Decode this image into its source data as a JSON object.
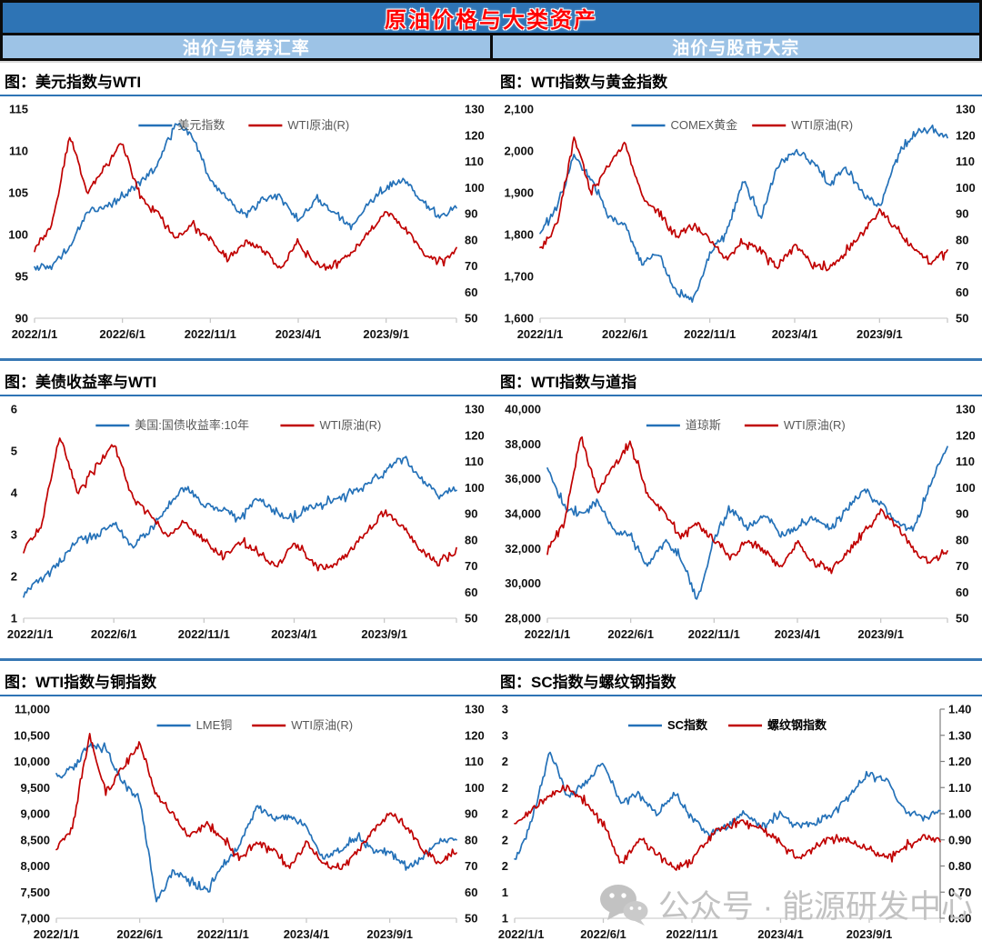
{
  "header": {
    "title": "原油价格与大类资产",
    "left_section": "油价与债券汇率",
    "right_section": "油价与股市大宗",
    "bar_color": "#2E74B5",
    "subheader_color": "#9DC3E6",
    "title_color": "#FF0000"
  },
  "watermark": {
    "text": "公众号 · 能源研发中心"
  },
  "colors": {
    "blue_series": "#2471B8",
    "red_series": "#C00000",
    "separator": "#3878B4"
  },
  "chart_data": [
    {
      "type": "line",
      "title": "图：美元指数与WTI",
      "x_tick_labels": [
        "2022/1/1",
        "2022/6/1",
        "2022/11/1",
        "2023/4/1",
        "2023/9/1"
      ],
      "x_tick_months": [
        0,
        5,
        10,
        15,
        20
      ],
      "x_total_months": 24,
      "left_axis": {
        "min": 90,
        "max": 115,
        "labels": [
          "115",
          "110",
          "105",
          "100",
          "95",
          "90"
        ]
      },
      "right_axis": {
        "min": 50,
        "max": 130,
        "labels": [
          "130",
          "120",
          "110",
          "100",
          "90",
          "80",
          "70",
          "60",
          "50"
        ]
      },
      "legend_bold": false,
      "right_axis_line": false,
      "series": [
        {
          "name": "美元指数",
          "color": "#2471B8",
          "axis": "left",
          "monthly_values": [
            96,
            96.4,
            98.4,
            102.8,
            103.3,
            104.5,
            106.2,
            108.3,
            113.3,
            111.8,
            106.6,
            104.1,
            102.2,
            104.3,
            104.5,
            101.7,
            104.1,
            102.7,
            100.9,
            103.6,
            105.7,
            106.6,
            104.2,
            101.9,
            103.4
          ]
        },
        {
          "name": "WTI原油(R)",
          "color": "#C00000",
          "axis": "right",
          "monthly_values": [
            76,
            86,
            120,
            98,
            108,
            117,
            97,
            90,
            81,
            86,
            80,
            73,
            79,
            76,
            69,
            79,
            71,
            69,
            75,
            83,
            91,
            85,
            76,
            71,
            76
          ]
        }
      ]
    },
    {
      "type": "line",
      "title": "图：WTI指数与黄金指数",
      "x_tick_labels": [
        "2022/1/1",
        "2022/6/1",
        "2022/11/1",
        "2023/4/1",
        "2023/9/1"
      ],
      "x_tick_months": [
        0,
        5,
        10,
        15,
        20
      ],
      "x_total_months": 24,
      "left_axis": {
        "min": 1600,
        "max": 2100,
        "labels": [
          "2,100",
          "2,000",
          "1,900",
          "1,800",
          "1,700",
          "1,600"
        ]
      },
      "right_axis": {
        "min": 50,
        "max": 130,
        "labels": [
          "130",
          "120",
          "110",
          "100",
          "90",
          "80",
          "70",
          "60",
          "50"
        ]
      },
      "legend_bold": false,
      "right_axis_line": false,
      "series": [
        {
          "name": "COMEX黄金",
          "color": "#2471B8",
          "axis": "left",
          "monthly_values": [
            1805,
            1865,
            1985,
            1935,
            1845,
            1820,
            1730,
            1755,
            1665,
            1640,
            1755,
            1810,
            1928,
            1840,
            1965,
            2000,
            1982,
            1920,
            1958,
            1898,
            1866,
            1985,
            2040,
            2060,
            2032
          ]
        },
        {
          "name": "WTI原油(R)",
          "color": "#C00000",
          "axis": "right",
          "monthly_values": [
            76,
            86,
            120,
            98,
            108,
            117,
            97,
            90,
            81,
            86,
            80,
            73,
            79,
            76,
            69,
            79,
            71,
            69,
            75,
            83,
            91,
            85,
            76,
            71,
            76
          ]
        }
      ]
    },
    {
      "type": "line",
      "title": "图：美债收益率与WTI",
      "x_tick_labels": [
        "2022/1/1",
        "2022/6/1",
        "2022/11/1",
        "2023/4/1",
        "2023/9/1"
      ],
      "x_tick_months": [
        0,
        5,
        10,
        15,
        20
      ],
      "x_total_months": 24,
      "left_axis": {
        "min": 1,
        "max": 6,
        "labels": [
          "6",
          "5",
          "4",
          "3",
          "2",
          "1"
        ]
      },
      "right_axis": {
        "min": 50,
        "max": 130,
        "labels": [
          "130",
          "120",
          "110",
          "100",
          "90",
          "80",
          "70",
          "60",
          "50"
        ]
      },
      "legend_bold": false,
      "right_axis_line": false,
      "series": [
        {
          "name": "美国:国债收益率:10年",
          "color": "#2471B8",
          "axis": "left",
          "monthly_values": [
            1.62,
            1.95,
            2.32,
            2.88,
            2.95,
            3.3,
            2.7,
            3.1,
            3.7,
            4.15,
            3.7,
            3.6,
            3.4,
            3.9,
            3.5,
            3.42,
            3.65,
            3.78,
            3.95,
            4.2,
            4.5,
            4.85,
            4.35,
            3.92,
            4.12
          ]
        },
        {
          "name": "WTI原油(R)",
          "color": "#C00000",
          "axis": "right",
          "monthly_values": [
            76,
            86,
            120,
            98,
            108,
            117,
            97,
            90,
            81,
            86,
            80,
            73,
            79,
            76,
            69,
            79,
            71,
            69,
            75,
            83,
            91,
            85,
            76,
            71,
            76
          ]
        }
      ]
    },
    {
      "type": "line",
      "title": "图：WTI指数与道指",
      "x_tick_labels": [
        "2022/1/1",
        "2022/6/1",
        "2022/11/1",
        "2023/4/1",
        "2023/9/1"
      ],
      "x_tick_months": [
        0,
        5,
        10,
        15,
        20
      ],
      "x_total_months": 24,
      "left_axis": {
        "min": 28000,
        "max": 40000,
        "labels": [
          "40,000",
          "38,000",
          "36,000",
          "34,000",
          "32,000",
          "30,000",
          "28,000"
        ]
      },
      "right_axis": {
        "min": 50,
        "max": 130,
        "labels": [
          "130",
          "120",
          "110",
          "100",
          "90",
          "80",
          "70",
          "60",
          "50"
        ]
      },
      "legend_bold": false,
      "right_axis_line": false,
      "series": [
        {
          "name": "道琼斯",
          "color": "#2471B8",
          "axis": "left",
          "monthly_values": [
            36600,
            34400,
            33900,
            34800,
            33000,
            32800,
            31000,
            32500,
            31500,
            29000,
            32500,
            34300,
            33200,
            34000,
            32800,
            33200,
            33800,
            33100,
            34300,
            35400,
            34600,
            33400,
            33100,
            35800,
            37800
          ]
        },
        {
          "name": "WTI原油(R)",
          "color": "#C00000",
          "axis": "right",
          "monthly_values": [
            76,
            86,
            120,
            98,
            108,
            117,
            97,
            90,
            81,
            86,
            80,
            73,
            79,
            76,
            69,
            79,
            71,
            69,
            75,
            83,
            91,
            85,
            76,
            71,
            76
          ]
        }
      ]
    },
    {
      "type": "line",
      "title": "图：WTI指数与铜指数",
      "x_tick_labels": [
        "2022/1/1",
        "2022/6/1",
        "2022/11/1",
        "2023/4/1",
        "2023/9/1"
      ],
      "x_tick_months": [
        0,
        5,
        10,
        15,
        20
      ],
      "x_total_months": 24,
      "left_axis": {
        "min": 7000,
        "max": 11000,
        "labels": [
          "11,000",
          "10,500",
          "10,000",
          "9,500",
          "9,000",
          "8,500",
          "8,000",
          "7,500",
          "7,000"
        ]
      },
      "right_axis": {
        "min": 50,
        "max": 130,
        "labels": [
          "130",
          "120",
          "110",
          "100",
          "90",
          "80",
          "70",
          "60",
          "50"
        ]
      },
      "legend_bold": false,
      "right_axis_line": false,
      "series": [
        {
          "name": "LME铜",
          "color": "#2471B8",
          "axis": "left",
          "monthly_values": [
            9720,
            9850,
            10300,
            10250,
            9550,
            9300,
            7300,
            7900,
            7700,
            7500,
            8000,
            8400,
            9150,
            8900,
            8950,
            8750,
            8150,
            8300,
            8550,
            8300,
            8250,
            7950,
            8150,
            8500,
            8480
          ]
        },
        {
          "name": "WTI原油(R)",
          "color": "#C00000",
          "axis": "right",
          "monthly_values": [
            76,
            86,
            120,
            98,
            108,
            117,
            97,
            90,
            81,
            86,
            80,
            73,
            79,
            76,
            69,
            79,
            71,
            69,
            75,
            83,
            91,
            85,
            76,
            71,
            76
          ]
        }
      ]
    },
    {
      "type": "line",
      "title": "图：SC指数与螺纹钢指数",
      "x_tick_labels": [
        "2022/1/1",
        "2022/6/1",
        "2022/11/1",
        "2023/4/1",
        "2023/9/1"
      ],
      "x_tick_months": [
        0,
        5,
        10,
        15,
        20
      ],
      "x_total_months": 24,
      "left_axis": {
        "min": 1,
        "max": 3,
        "labels": [
          "3",
          "3",
          "2",
          "2",
          "2",
          "2",
          "2",
          "1",
          "1"
        ]
      },
      "right_axis": {
        "min": 0.6,
        "max": 1.4,
        "labels": [
          "1.40",
          "1.30",
          "1.20",
          "1.10",
          "1.00",
          "0.90",
          "0.80",
          "0.70",
          "0.60"
        ]
      },
      "legend_bold": true,
      "right_axis_line": true,
      "series": [
        {
          "name": "SC指数",
          "color": "#2471B8",
          "axis": "left",
          "monthly_values": [
            1.55,
            1.95,
            2.6,
            2.15,
            2.3,
            2.5,
            2.1,
            2.2,
            2.0,
            2.2,
            1.95,
            1.8,
            1.88,
            2.02,
            1.86,
            2.0,
            1.88,
            1.92,
            2.02,
            2.18,
            2.38,
            2.32,
            2.02,
            1.95,
            2.05
          ]
        },
        {
          "name": "螺纹钢指数",
          "color": "#C00000",
          "axis": "right",
          "monthly_values": [
            0.95,
            1.02,
            1.07,
            1.1,
            1.04,
            0.97,
            0.8,
            0.9,
            0.85,
            0.79,
            0.82,
            0.92,
            0.95,
            0.97,
            0.94,
            0.89,
            0.83,
            0.88,
            0.91,
            0.9,
            0.86,
            0.83,
            0.87,
            0.91,
            0.9
          ]
        }
      ]
    }
  ]
}
